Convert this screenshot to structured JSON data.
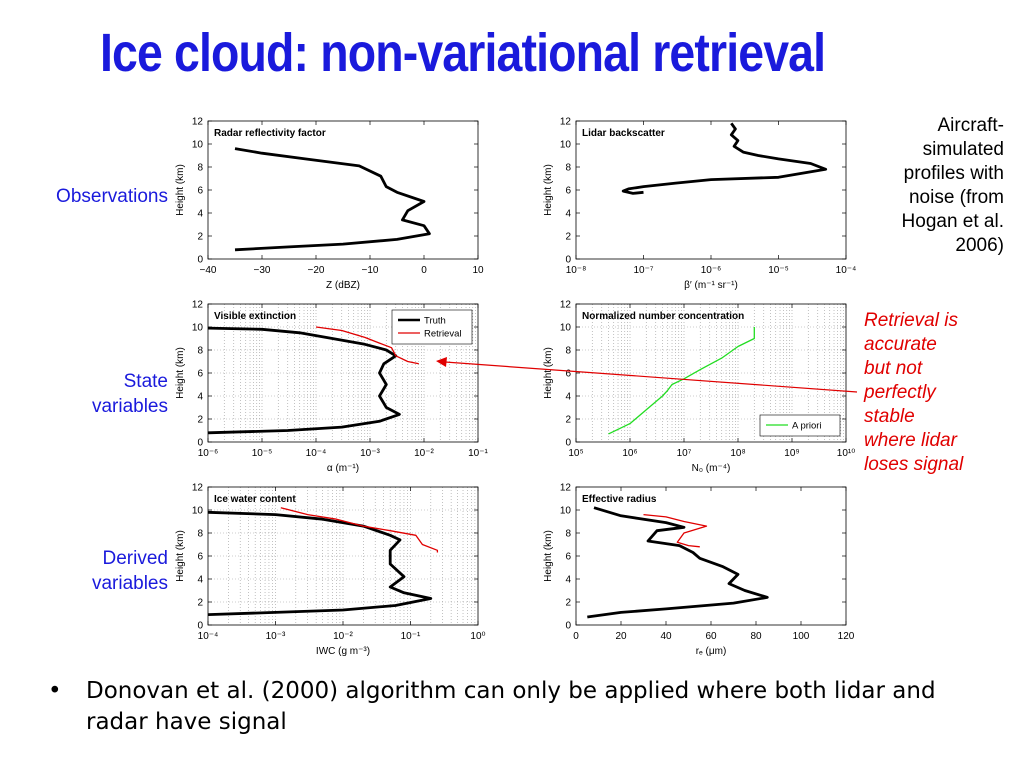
{
  "title": "Ice cloud: non-variational retrieval",
  "row_labels": {
    "observations": "Observations",
    "state_line1": "State",
    "state_line2": "variables",
    "derived_line1": "Derived",
    "derived_line2": "variables"
  },
  "notes": {
    "aircraft": [
      "Aircraft-",
      "simulated",
      "profiles with",
      "noise (from",
      "Hogan et al.",
      "2006)"
    ],
    "retrieval": [
      "Retrieval is",
      "accurate",
      "but not",
      "perfectly",
      "stable",
      "where lidar",
      "loses signal"
    ]
  },
  "bullet": {
    "symbol": "•",
    "text": "Donovan et al. (2000) algorithm can only be applied where both lidar and radar have signal"
  },
  "colors": {
    "title": "#1a1adc",
    "truth": "#000000",
    "retrieval": "#e00000",
    "a_priori": "#22dd22",
    "note_red": "#e00000"
  },
  "chart_data": [
    {
      "id": "radar",
      "type": "line",
      "title": "Radar reflectivity factor",
      "xlabel": "Z (dBZ)",
      "ylabel": "Height (km)",
      "xscale": "linear",
      "xlim": [
        -40,
        10
      ],
      "ylim": [
        0,
        12
      ],
      "xticks": [
        -40,
        -30,
        -20,
        -10,
        0,
        10
      ],
      "xtick_labels": [
        "−40",
        "−30",
        "−20",
        "−10",
        "0",
        "10"
      ],
      "yticks": [
        0,
        2,
        4,
        6,
        8,
        10,
        12
      ],
      "grid": false,
      "series": [
        {
          "role": "truth",
          "x": [
            -35,
            -30,
            -22,
            -12,
            -8,
            -7,
            -5,
            0,
            -3,
            -4,
            0,
            1,
            -5,
            -15,
            -25,
            -35
          ],
          "y": [
            9.6,
            9.2,
            8.7,
            8.1,
            7.2,
            6.3,
            5.8,
            5.0,
            4.2,
            3.4,
            2.9,
            2.2,
            1.7,
            1.3,
            1.05,
            0.8
          ]
        }
      ]
    },
    {
      "id": "lidar",
      "type": "line",
      "title": "Lidar backscatter",
      "xlabel": "β′ (m⁻¹ sr⁻¹)",
      "ylabel": "Height (km)",
      "xscale": "log",
      "xlim": [
        1e-08,
        0.0001
      ],
      "ylim": [
        0,
        12
      ],
      "xticks": [
        1e-08,
        1e-07,
        1e-06,
        1e-05,
        0.0001
      ],
      "xtick_labels": [
        "10⁻⁸",
        "10⁻⁷",
        "10⁻⁶",
        "10⁻⁵",
        "10⁻⁴"
      ],
      "yticks": [
        0,
        2,
        4,
        6,
        8,
        10,
        12
      ],
      "grid": false,
      "series": [
        {
          "role": "truth",
          "x": [
            2e-06,
            2.3e-06,
            2e-06,
            2.5e-06,
            2.2e-06,
            3e-06,
            5e-06,
            1e-05,
            3e-05,
            5e-05,
            1e-05,
            1e-06,
            3e-07,
            1e-07,
            6e-08,
            5e-08,
            7e-08,
            1e-07
          ],
          "y": [
            11.8,
            11.3,
            10.8,
            10.3,
            9.8,
            9.3,
            9.0,
            8.7,
            8.3,
            7.8,
            7.1,
            6.9,
            6.6,
            6.3,
            6.1,
            5.9,
            5.7,
            5.8
          ]
        }
      ]
    },
    {
      "id": "extinction",
      "type": "line",
      "title": "Visible extinction",
      "xlabel": "α (m⁻¹)",
      "ylabel": "Height (km)",
      "xscale": "log",
      "xlim": [
        1e-06,
        0.1
      ],
      "ylim": [
        0,
        12
      ],
      "xticks": [
        1e-06,
        1e-05,
        0.0001,
        0.001,
        0.01,
        0.1
      ],
      "xtick_labels": [
        "10⁻⁶",
        "10⁻⁵",
        "10⁻⁴",
        "10⁻³",
        "10⁻²",
        "10⁻¹"
      ],
      "yticks": [
        0,
        2,
        4,
        6,
        8,
        10,
        12
      ],
      "grid": true,
      "legend": {
        "position": "top-right",
        "entries": [
          "Truth",
          "Retrieval"
        ]
      },
      "series": [
        {
          "name": "Truth",
          "x": [
            1e-06,
            1e-05,
            5e-05,
            0.0002,
            0.0008,
            0.002,
            0.003,
            0.0018,
            0.0015,
            0.002,
            0.0015,
            0.002,
            0.0035,
            0.0015,
            0.0003,
            3e-05,
            1e-06
          ],
          "y": [
            9.9,
            9.8,
            9.5,
            9.0,
            8.5,
            8.0,
            7.5,
            6.8,
            6.0,
            5.0,
            4.0,
            3.0,
            2.4,
            1.8,
            1.3,
            1.0,
            0.8
          ]
        },
        {
          "name": "Retrieval",
          "x": [
            0.0001,
            0.0003,
            0.0008,
            0.0015,
            0.0025,
            0.003,
            0.005,
            0.008
          ],
          "y": [
            10.0,
            9.7,
            9.1,
            8.6,
            8.2,
            7.5,
            7.0,
            6.8
          ]
        }
      ]
    },
    {
      "id": "number_concentration",
      "type": "line",
      "title": "Normalized number concentration",
      "xlabel": "N₀ (m⁻⁴)",
      "ylabel": "Height (km)",
      "xscale": "log",
      "xlim": [
        100000.0,
        10000000000.0
      ],
      "ylim": [
        0,
        12
      ],
      "xticks": [
        100000.0,
        1000000.0,
        10000000.0,
        100000000.0,
        1000000000.0,
        10000000000.0
      ],
      "xtick_labels": [
        "10⁵",
        "10⁶",
        "10⁷",
        "10⁸",
        "10⁹",
        "10¹⁰"
      ],
      "yticks": [
        0,
        2,
        4,
        6,
        8,
        10,
        12
      ],
      "grid": true,
      "legend": {
        "position": "bottom-right",
        "entries": [
          "A priori"
        ]
      },
      "series": [
        {
          "name": "A priori",
          "x": [
            400000.0,
            1000000.0,
            2000000.0,
            4000000.0,
            5000000.0,
            6000000.0,
            10000000.0,
            20000000.0,
            50000000.0,
            100000000.0,
            200000000.0,
            200000000.0
          ],
          "y": [
            0.7,
            1.6,
            2.8,
            4.0,
            4.5,
            5.0,
            5.5,
            6.3,
            7.3,
            8.3,
            9.0,
            10.0
          ]
        }
      ]
    },
    {
      "id": "iwc",
      "type": "line",
      "title": "Ice water content",
      "xlabel": "IWC (g m⁻³)",
      "ylabel": "Height (km)",
      "xscale": "log",
      "xlim": [
        0.0001,
        1
      ],
      "ylim": [
        0,
        12
      ],
      "xticks": [
        0.0001,
        0.001,
        0.01,
        0.1,
        1
      ],
      "xtick_labels": [
        "10⁻⁴",
        "10⁻³",
        "10⁻²",
        "10⁻¹",
        "10⁰"
      ],
      "yticks": [
        0,
        2,
        4,
        6,
        8,
        10,
        12
      ],
      "grid": true,
      "series": [
        {
          "role": "truth",
          "x": [
            0.0001,
            0.001,
            0.005,
            0.02,
            0.05,
            0.07,
            0.05,
            0.05,
            0.08,
            0.05,
            0.08,
            0.2,
            0.06,
            0.01,
            0.001,
            0.0001
          ],
          "y": [
            9.8,
            9.6,
            9.2,
            8.6,
            7.8,
            7.4,
            6.5,
            5.3,
            4.2,
            3.3,
            2.8,
            2.3,
            1.7,
            1.3,
            1.1,
            0.9
          ]
        },
        {
          "role": "retrieval",
          "x": [
            0.0012,
            0.003,
            0.008,
            0.02,
            0.05,
            0.12,
            0.15,
            0.25,
            0.25
          ],
          "y": [
            10.2,
            9.6,
            9.2,
            8.6,
            8.2,
            7.8,
            7.0,
            6.5,
            6.3
          ]
        }
      ]
    },
    {
      "id": "effective_radius",
      "type": "line",
      "title": "Effective radius",
      "xlabel": "rₑ (μm)",
      "ylabel": "Height (km)",
      "xscale": "linear",
      "xlim": [
        0,
        120
      ],
      "ylim": [
        0,
        12
      ],
      "xticks": [
        0,
        20,
        40,
        60,
        80,
        100,
        120
      ],
      "xtick_labels": [
        "0",
        "20",
        "40",
        "60",
        "80",
        "100",
        "120"
      ],
      "yticks": [
        0,
        2,
        4,
        6,
        8,
        10,
        12
      ],
      "grid": false,
      "series": [
        {
          "role": "truth",
          "x": [
            8,
            20,
            40,
            48,
            36,
            32,
            46,
            52,
            55,
            65,
            72,
            68,
            75,
            85,
            70,
            40,
            20,
            5
          ],
          "y": [
            10.2,
            9.5,
            8.9,
            8.5,
            8.2,
            7.3,
            6.9,
            6.3,
            5.8,
            5.1,
            4.4,
            3.6,
            3.0,
            2.4,
            1.9,
            1.4,
            1.1,
            0.7
          ]
        },
        {
          "role": "retrieval",
          "x": [
            30,
            40,
            48,
            58,
            48,
            45,
            50,
            55
          ],
          "y": [
            9.6,
            9.4,
            9.0,
            8.6,
            8.0,
            7.2,
            6.9,
            6.8
          ]
        }
      ]
    }
  ]
}
